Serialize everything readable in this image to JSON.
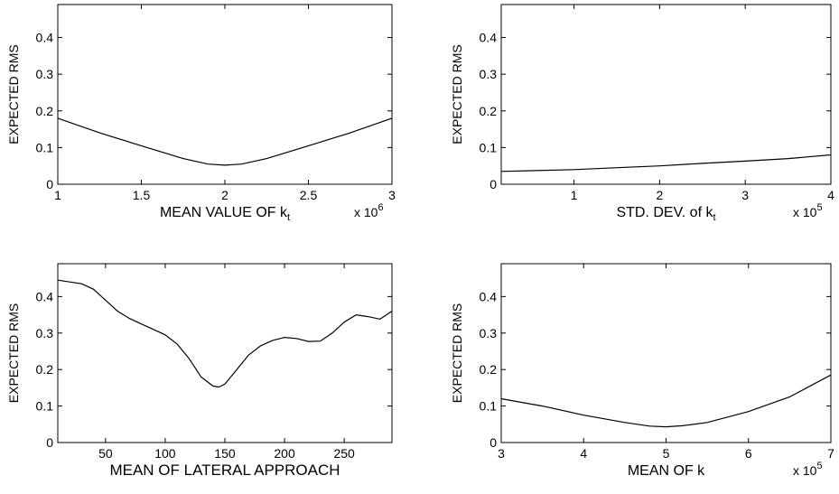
{
  "chart_data": [
    {
      "type": "line",
      "ylabel": "EXPECTED RMS",
      "xlabel": "MEAN VALUE OF k",
      "xlabel_subscript": "t",
      "x_multiplier": {
        "base": "x 10",
        "exponent": "6"
      },
      "x": [
        1,
        1.25,
        1.5,
        1.75,
        1.9,
        2,
        2.1,
        2.25,
        2.5,
        2.75,
        3
      ],
      "values": [
        0.18,
        0.14,
        0.105,
        0.07,
        0.055,
        0.052,
        0.055,
        0.07,
        0.105,
        0.14,
        0.18
      ],
      "color": "#000000",
      "xlim": [
        1,
        3
      ],
      "ylim": [
        0,
        0.49
      ],
      "xticks": [
        1,
        1.5,
        2,
        2.5,
        3
      ],
      "yticks": [
        0,
        0.1,
        0.2,
        0.3,
        0.4
      ]
    },
    {
      "type": "line",
      "ylabel": "EXPECTED RMS",
      "xlabel": "STD. DEV. of k",
      "xlabel_subscript": "t",
      "x_multiplier": {
        "base": "x 10",
        "exponent": "5"
      },
      "x": [
        0.15,
        0.5,
        1,
        1.5,
        2,
        2.5,
        3,
        3.5,
        4
      ],
      "values": [
        0.035,
        0.037,
        0.04,
        0.045,
        0.05,
        0.057,
        0.063,
        0.07,
        0.08
      ],
      "color": "#000000",
      "xlim": [
        0.15,
        4
      ],
      "ylim": [
        0,
        0.49
      ],
      "xticks": [
        1,
        2,
        3,
        4
      ],
      "yticks": [
        0,
        0.1,
        0.2,
        0.3,
        0.4
      ]
    },
    {
      "type": "line",
      "ylabel": "EXPECTED RMS",
      "xlabel": "MEAN OF LATERAL APPROACH",
      "x": [
        10,
        20,
        30,
        40,
        50,
        60,
        70,
        80,
        90,
        100,
        110,
        120,
        130,
        140,
        145,
        150,
        160,
        170,
        180,
        190,
        200,
        210,
        220,
        230,
        240,
        250,
        260,
        270,
        280,
        290
      ],
      "values": [
        0.445,
        0.44,
        0.435,
        0.42,
        0.39,
        0.36,
        0.34,
        0.325,
        0.31,
        0.295,
        0.27,
        0.23,
        0.18,
        0.155,
        0.152,
        0.16,
        0.2,
        0.24,
        0.265,
        0.28,
        0.288,
        0.285,
        0.277,
        0.278,
        0.3,
        0.33,
        0.35,
        0.345,
        0.338,
        0.36
      ],
      "color": "#000000",
      "xlim": [
        10,
        290
      ],
      "ylim": [
        0,
        0.49
      ],
      "xticks": [
        50,
        100,
        150,
        200,
        250
      ],
      "yticks": [
        0,
        0.1,
        0.2,
        0.3,
        0.4
      ]
    },
    {
      "type": "line",
      "ylabel": "EXPECTED RMS",
      "xlabel": "MEAN OF k",
      "x_multiplier": {
        "base": "x 10",
        "exponent": "5"
      },
      "x": [
        3,
        3.5,
        4,
        4.5,
        4.8,
        5,
        5.2,
        5.5,
        6,
        6.5,
        7
      ],
      "values": [
        0.12,
        0.1,
        0.075,
        0.055,
        0.045,
        0.043,
        0.046,
        0.055,
        0.085,
        0.125,
        0.185
      ],
      "color": "#000000",
      "xlim": [
        3,
        7
      ],
      "ylim": [
        0,
        0.49
      ],
      "xticks": [
        3,
        4,
        5,
        6,
        7
      ],
      "yticks": [
        0,
        0.1,
        0.2,
        0.3,
        0.4
      ]
    }
  ]
}
